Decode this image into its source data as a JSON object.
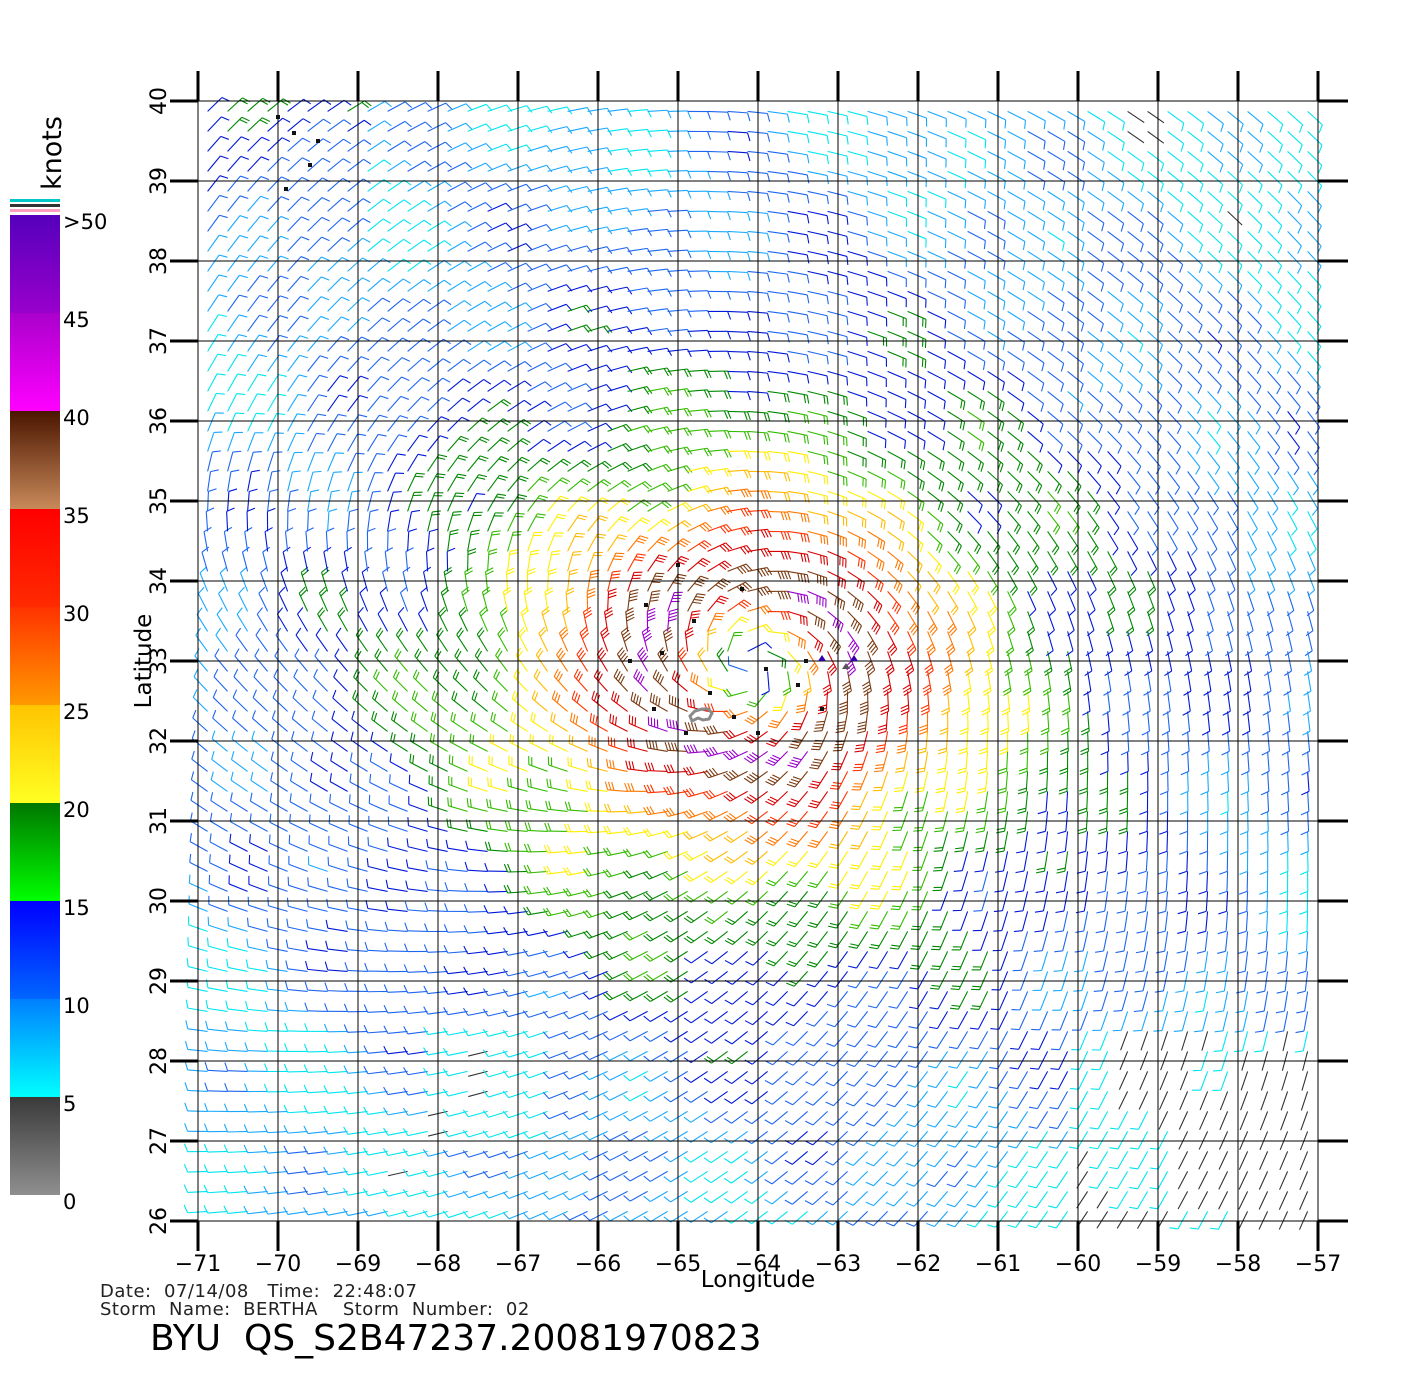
{
  "map": {
    "x_label": "Longitude",
    "y_label": "Latitude",
    "lon_range": [
      -71,
      -57
    ],
    "lat_range": [
      26,
      40
    ],
    "lon_ticks": [
      -71,
      -70,
      -69,
      -68,
      -67,
      -66,
      -65,
      -64,
      -63,
      -62,
      -61,
      -60,
      -59,
      -58,
      -57
    ],
    "lon_tick_labels": [
      "−71",
      "−70",
      "−69",
      "−68",
      "−67",
      "−66",
      "−65",
      "−64",
      "−63",
      "−62",
      "−61",
      "−60",
      "−59",
      "−58",
      "−57"
    ],
    "lat_ticks": [
      26,
      27,
      28,
      29,
      30,
      31,
      32,
      33,
      34,
      35,
      36,
      37,
      38,
      39,
      40
    ],
    "lat_tick_labels": [
      "26",
      "27",
      "28",
      "29",
      "30",
      "31",
      "32",
      "33",
      "34",
      "35",
      "36",
      "37",
      "38",
      "39",
      "40"
    ],
    "grid": true,
    "storm_center": {
      "lon": -64.1,
      "lat": 32.9
    },
    "island_label_lonlat": {
      "lon": -64.75,
      "lat": 32.3
    }
  },
  "colorbar": {
    "units": "knots",
    "labels": [
      ">50",
      "45",
      "40",
      "35",
      "30",
      "25",
      "20",
      "15",
      "10",
      "5",
      "0"
    ],
    "bands": [
      {
        "from": 0,
        "to": 5,
        "top": "#3a3a3a",
        "bottom": "#8f8f8f"
      },
      {
        "from": 5,
        "to": 10,
        "top": "#0080ff",
        "bottom": "#00ffff"
      },
      {
        "from": 10,
        "to": 15,
        "top": "#0000ff",
        "bottom": "#0066ff"
      },
      {
        "from": 15,
        "to": 20,
        "top": "#007700",
        "bottom": "#00ff00"
      },
      {
        "from": 20,
        "to": 25,
        "top": "#ffc400",
        "bottom": "#ffff22"
      },
      {
        "from": 25,
        "to": 30,
        "top": "#ff3300",
        "bottom": "#ff9900"
      },
      {
        "from": 30,
        "to": 35,
        "top": "#ff0000",
        "bottom": "#ff2a00"
      },
      {
        "from": 35,
        "to": 40,
        "top": "#4a1500",
        "bottom": "#c98a5a"
      },
      {
        "from": 40,
        "to": 45,
        "top": "#aa00cc",
        "bottom": "#ff00ff"
      },
      {
        "from": 45,
        "to": 50,
        "top": "#5500bb",
        "bottom": "#9900cc"
      }
    ]
  },
  "footer": {
    "date_line": "Date:  07/14/08   Time:  22:48:07",
    "storm_line": "Storm  Name:  BERTHA    Storm  Number:  02",
    "title": "BYU  QS_S2B47237.20081970823"
  }
}
